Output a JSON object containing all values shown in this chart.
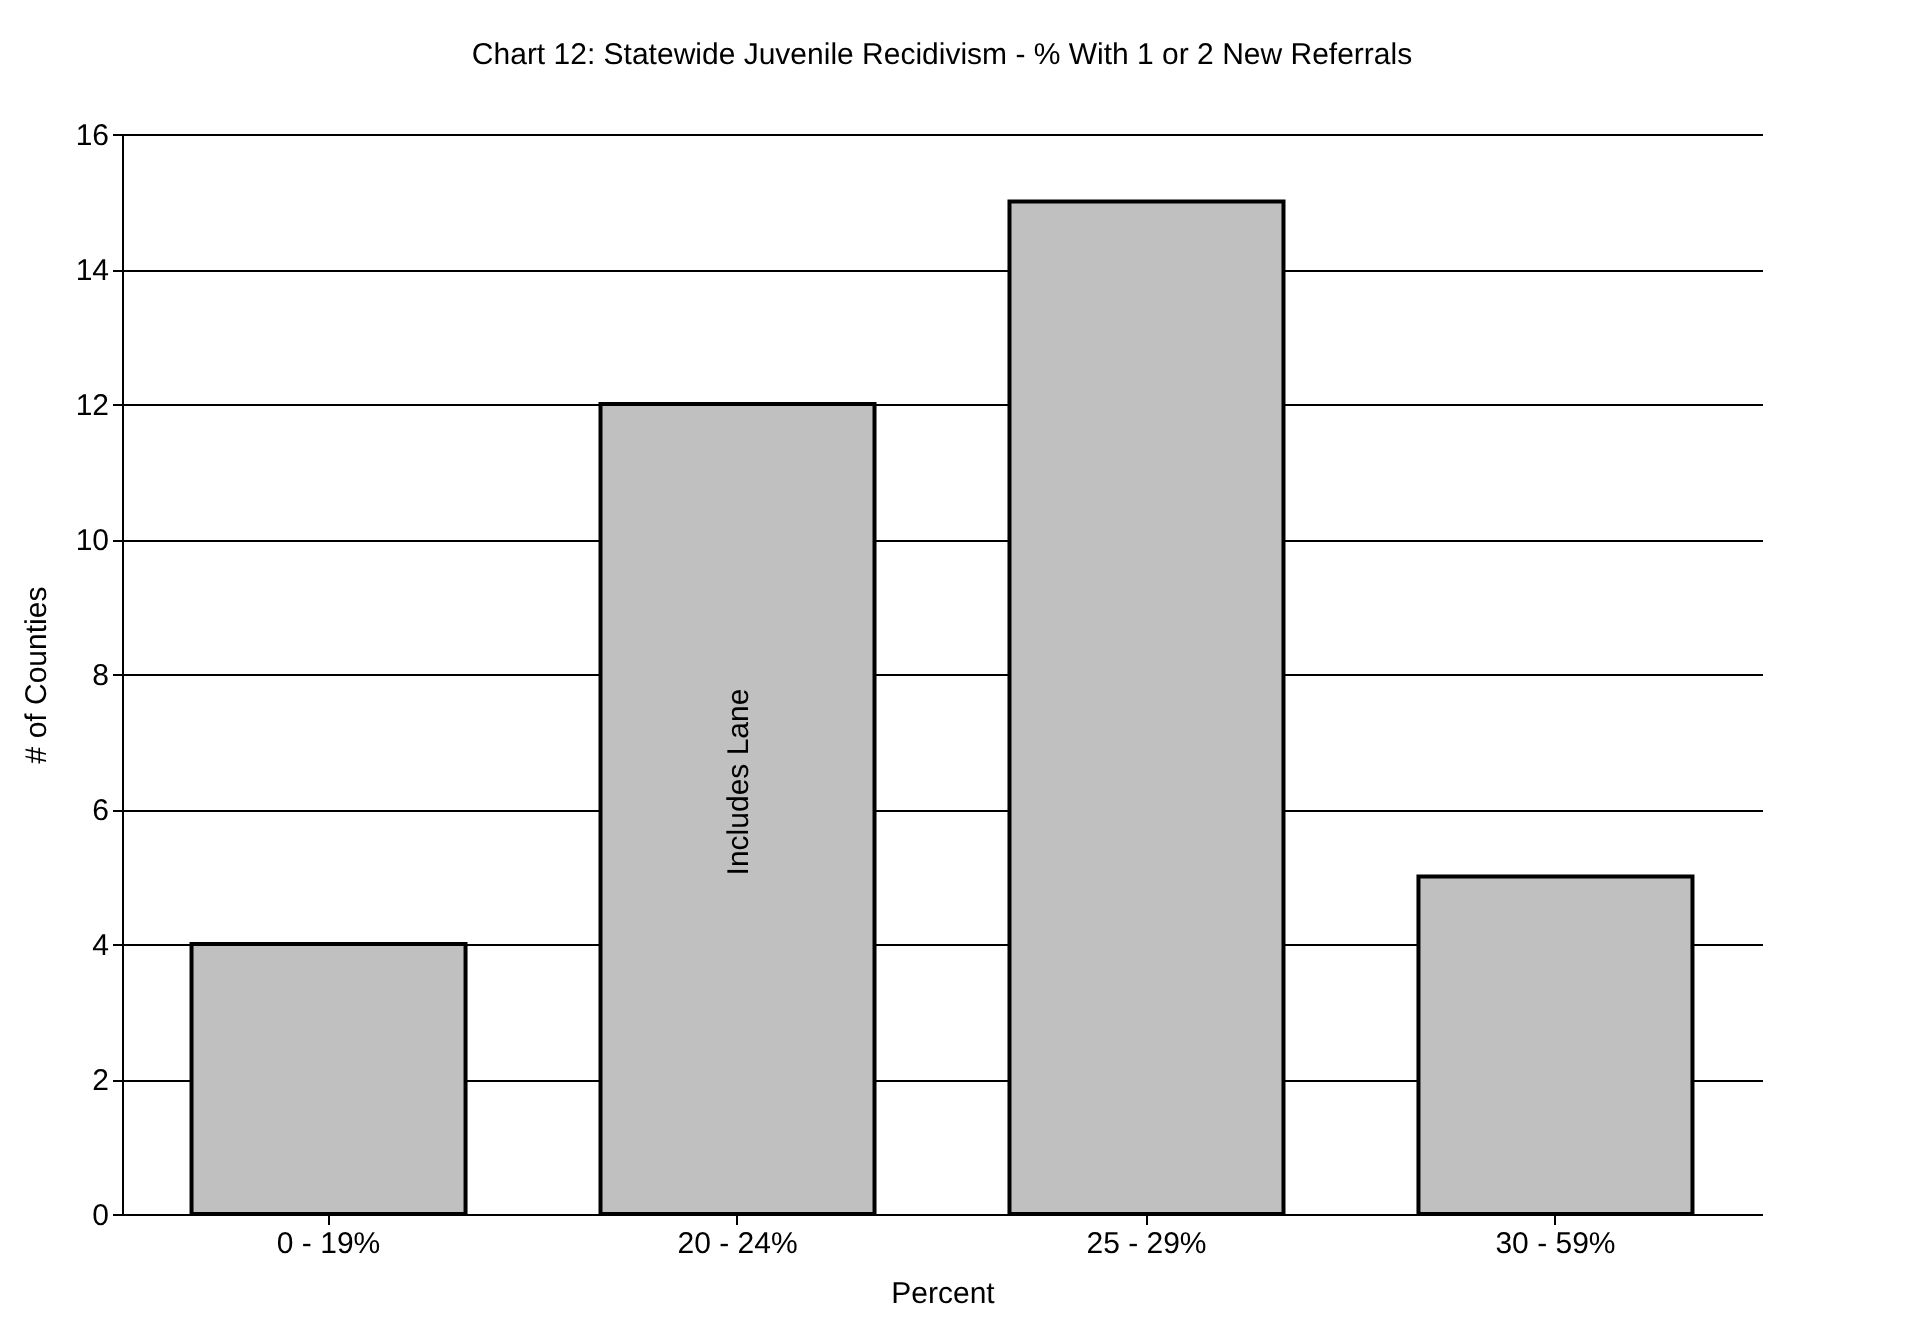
{
  "chart_data": {
    "type": "bar",
    "title": "Chart 12: Statewide Juvenile Recidivism - % With 1 or 2 New Referrals",
    "xlabel": "Percent",
    "ylabel": "# of Counties",
    "categories": [
      "0 - 19%",
      "20 - 24%",
      "25 - 29%",
      "30 - 59%"
    ],
    "values": [
      4,
      12,
      15,
      5
    ],
    "color": "#c0c0c0",
    "ylim": [
      0,
      16
    ],
    "yticks": [
      0,
      2,
      4,
      6,
      8,
      10,
      12,
      14,
      16
    ],
    "grid": "y",
    "annotations": [
      "Includes Lane"
    ]
  }
}
